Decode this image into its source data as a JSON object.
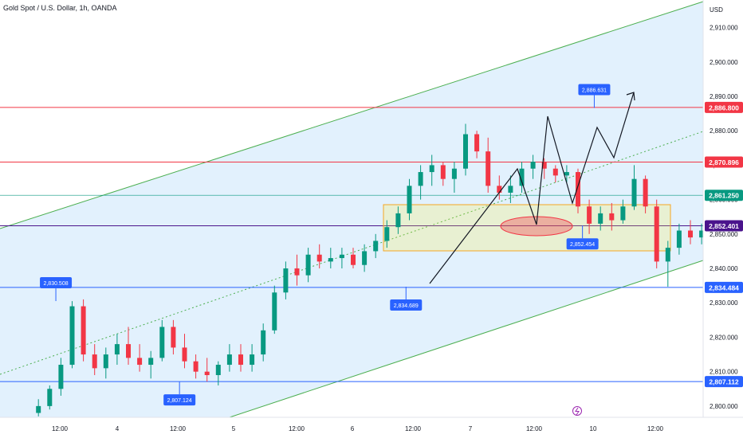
{
  "header": {
    "symbol_title": "Gold Spot / U.S. Dollar, 1h, OANDA",
    "currency": "USD"
  },
  "chart_data": {
    "type": "candlestick",
    "x_ticks": [
      "12:00",
      "4",
      "12:00",
      "5",
      "12:00",
      "6",
      "12:00",
      "7",
      "12:00",
      "10",
      "12:00"
    ],
    "y_ticks": [
      "2,800.000",
      "2,810.000",
      "2,820.000",
      "2,830.000",
      "2,840.000",
      "2,850.000",
      "2,860.000",
      "2,870.000",
      "2,880.000",
      "2,890.000",
      "2,900.000",
      "2,910.000"
    ],
    "ylim": [
      2796.5,
      2918.0
    ],
    "horizontal_levels": [
      {
        "value": 2886.8,
        "label": "2,886.800",
        "color": "#f23645"
      },
      {
        "value": 2870.896,
        "label": "2,870.896",
        "color": "#f23645"
      },
      {
        "value": 2861.25,
        "label": "2,861.250",
        "color": "#089981"
      },
      {
        "value": 2852.401,
        "label": "2,852.401",
        "color": "#4a148c"
      },
      {
        "value": 2834.484,
        "label": "2,834.484",
        "color": "#2962ff"
      },
      {
        "value": 2807.112,
        "label": "2,807.112",
        "color": "#2962ff"
      }
    ],
    "callouts": [
      {
        "label": "2,830.508",
        "value": 2830.508,
        "time": 1.55
      },
      {
        "label": "2,807.124",
        "value": 2807.124,
        "time": 12.55
      },
      {
        "label": "2,834.689",
        "value": 2834.689,
        "time": 32.7
      },
      {
        "label": "2,852.454",
        "value": 2852.454,
        "time": 48.4
      },
      {
        "label": "2,886.631",
        "value": 2886.631,
        "time": 49.45
      }
    ],
    "candles": [
      [
        2798,
        2802,
        2797,
        2800
      ],
      [
        2800,
        2806,
        2799,
        2805
      ],
      [
        2805,
        2814,
        2803,
        2812
      ],
      [
        2812,
        2830.5,
        2811,
        2829
      ],
      [
        2829,
        2831,
        2813,
        2815
      ],
      [
        2815,
        2818,
        2809,
        2811
      ],
      [
        2811,
        2817,
        2808,
        2815
      ],
      [
        2815,
        2821,
        2812,
        2818
      ],
      [
        2818,
        2823,
        2812,
        2814
      ],
      [
        2814,
        2818,
        2810,
        2812
      ],
      [
        2812,
        2816,
        2808,
        2814
      ],
      [
        2814,
        2825,
        2813,
        2823
      ],
      [
        2823,
        2825,
        2815,
        2817
      ],
      [
        2817,
        2821,
        2811,
        2813
      ],
      [
        2813,
        2815,
        2808,
        2810
      ],
      [
        2810,
        2814,
        2807.1,
        2809
      ],
      [
        2809,
        2813,
        2806,
        2812
      ],
      [
        2812,
        2818,
        2810,
        2815
      ],
      [
        2815,
        2818,
        2810,
        2812
      ],
      [
        2812,
        2818,
        2810,
        2815
      ],
      [
        2815,
        2824,
        2813,
        2822
      ],
      [
        2822,
        2835,
        2821,
        2833
      ],
      [
        2833,
        2842,
        2831,
        2840
      ],
      [
        2840,
        2844,
        2835,
        2838
      ],
      [
        2838,
        2846,
        2836,
        2844
      ],
      [
        2844,
        2847,
        2840,
        2842
      ],
      [
        2842,
        2846,
        2840,
        2843
      ],
      [
        2843,
        2846,
        2840,
        2844
      ],
      [
        2844,
        2846,
        2840,
        2841
      ],
      [
        2841,
        2847,
        2839,
        2845
      ],
      [
        2845,
        2850,
        2843,
        2848
      ],
      [
        2848,
        2854,
        2846,
        2852
      ],
      [
        2852,
        2858,
        2850,
        2856
      ],
      [
        2856,
        2866,
        2854,
        2864
      ],
      [
        2864,
        2870,
        2860,
        2868
      ],
      [
        2868,
        2873,
        2864,
        2870
      ],
      [
        2870,
        2871,
        2864,
        2866
      ],
      [
        2866,
        2871,
        2862,
        2869
      ],
      [
        2869,
        2882,
        2867,
        2879
      ],
      [
        2879,
        2880,
        2872,
        2874
      ],
      [
        2874,
        2878,
        2862,
        2864
      ],
      [
        2864,
        2867,
        2860,
        2862
      ],
      [
        2862,
        2867,
        2859,
        2864
      ],
      [
        2864,
        2871,
        2862,
        2869
      ],
      [
        2869,
        2873,
        2866,
        2871
      ],
      [
        2871,
        2872,
        2866,
        2869
      ],
      [
        2869,
        2870,
        2865,
        2867
      ],
      [
        2867,
        2870,
        2865,
        2868
      ],
      [
        2868,
        2869,
        2856,
        2858
      ],
      [
        2858,
        2860,
        2850,
        2853
      ],
      [
        2853,
        2858,
        2851,
        2856
      ],
      [
        2856,
        2859,
        2851,
        2854
      ],
      [
        2854,
        2860,
        2853,
        2858
      ],
      [
        2858,
        2870,
        2857,
        2866
      ],
      [
        2866,
        2867,
        2856,
        2858
      ],
      [
        2858,
        2860,
        2840,
        2842
      ],
      [
        2842,
        2848,
        2834.7,
        2846
      ],
      [
        2846,
        2853,
        2844,
        2851
      ],
      [
        2851,
        2854,
        2847,
        2849
      ],
      [
        2849,
        2853,
        2847,
        2851
      ],
      [
        2851,
        2855,
        2849,
        2853
      ],
      [
        2853,
        2857,
        2851,
        2855
      ],
      [
        2855,
        2858,
        2853,
        2856
      ],
      [
        2856,
        2859,
        2854,
        2857
      ],
      [
        2857,
        2866,
        2855,
        2864
      ],
      [
        2864,
        2869,
        2862,
        2866
      ],
      [
        2866,
        2868,
        2862,
        2864
      ],
      [
        2864,
        2866,
        2860,
        2862
      ],
      [
        2862,
        2864,
        2859,
        2861
      ],
      [
        2861,
        2869,
        2860,
        2867
      ],
      [
        2867,
        2870,
        2865,
        2868
      ],
      [
        2868,
        2869,
        2863,
        2865
      ],
      [
        2865,
        2867,
        2861,
        2862
      ],
      [
        2862,
        2871,
        2853,
        2869
      ],
      [
        2869,
        2886.6,
        2866,
        2880
      ],
      [
        2880,
        2881,
        2861,
        2863
      ],
      [
        2863,
        2865,
        2859,
        2861
      ],
      [
        2861,
        2863,
        2859,
        2862
      ],
      [
        2862,
        2863,
        2860,
        2861
      ],
      [
        2861,
        2862,
        2860,
        2861.3
      ]
    ]
  }
}
